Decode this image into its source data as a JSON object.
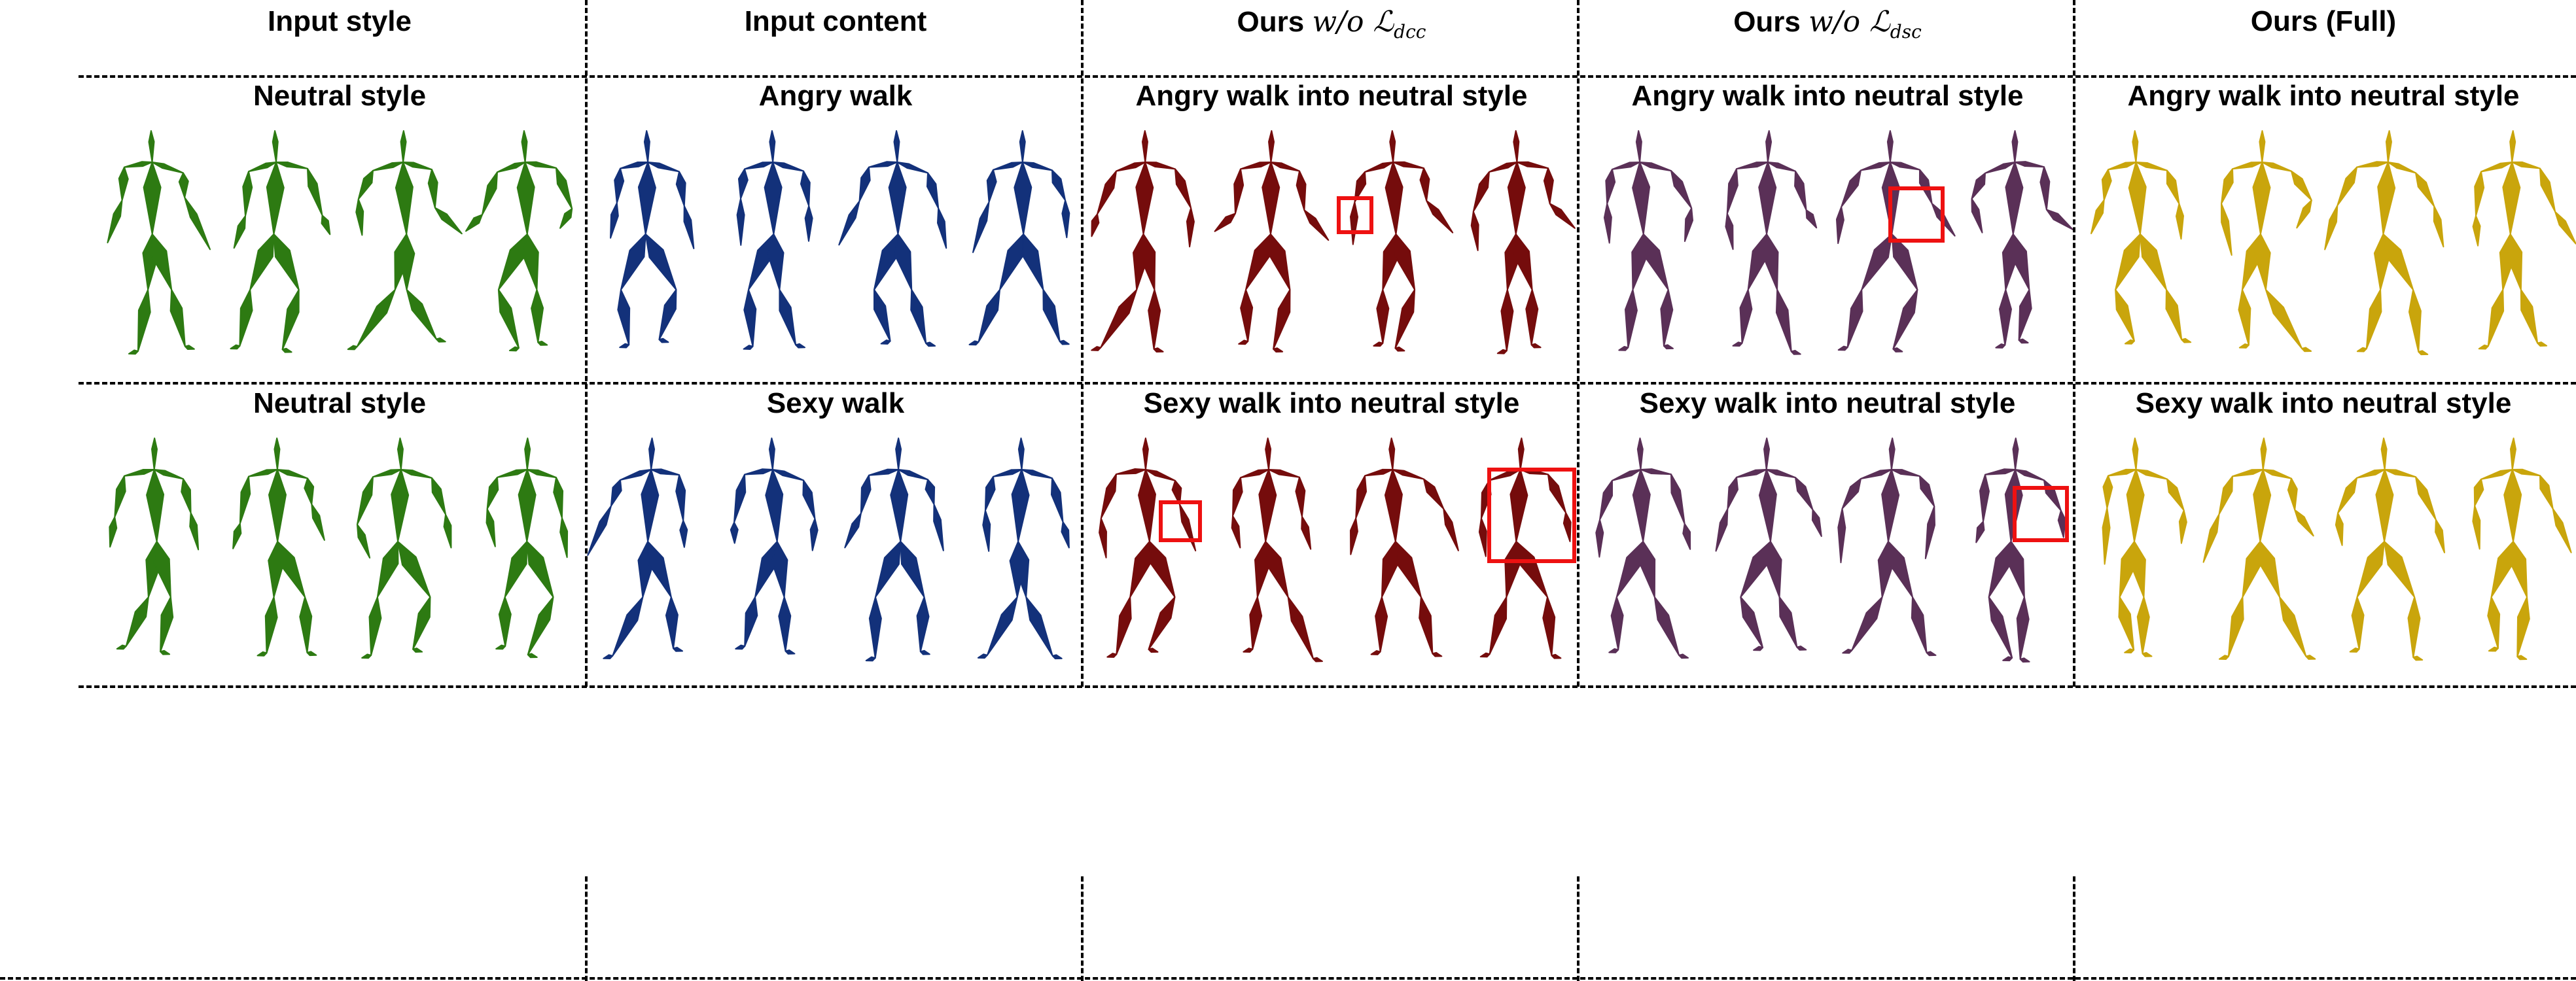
{
  "headers": {
    "input_style": "Input style",
    "input_content": "Input content",
    "ablation_dcc_prefix": "Ours",
    "ablation_dcc_math": "w/o ℒ",
    "ablation_dcc_sub": "dcc",
    "ablation_dsc_prefix": "Ours",
    "ablation_dsc_math": "w/o ℒ",
    "ablation_dsc_sub": "dsc",
    "full": "Ours (Full)"
  },
  "rows": [
    {
      "style_label": "Neutral style",
      "content_label": "Angry walk",
      "result_dcc": "Angry walk into neutral style",
      "result_dsc": "Angry walk into neutral style",
      "result_full": "Angry walk into neutral style"
    },
    {
      "style_label": "Neutral style",
      "content_label": "Sexy walk",
      "result_dcc": "Sexy walk into neutral style",
      "result_dsc": "Sexy walk into neutral style",
      "result_full": "Sexy walk into neutral style"
    }
  ],
  "colors": {
    "style": "#2d7a12",
    "content": "#13317a",
    "dcc": "#750c0c",
    "dsc": "#5a3057",
    "full": "#c9a50c",
    "highlight": "#ee1111"
  }
}
